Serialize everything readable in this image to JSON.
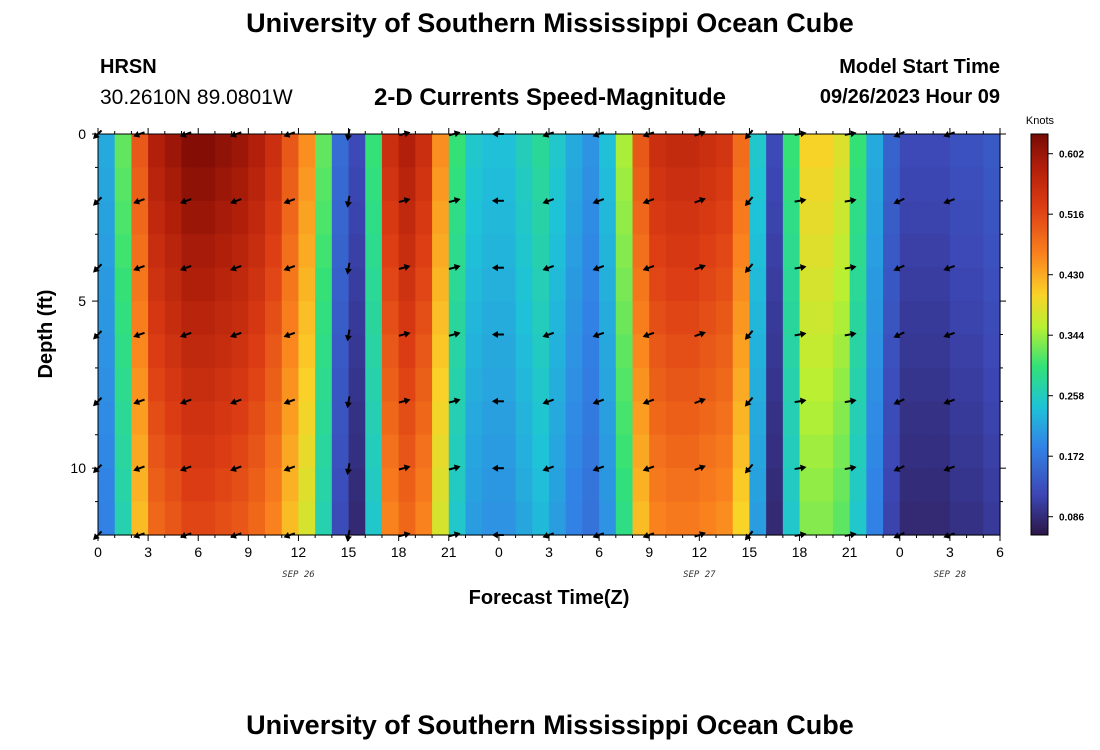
{
  "header": {
    "title": "University of Southern Mississippi Ocean Cube",
    "station": "HRSN",
    "coords": "30.2610N  89.0801W",
    "subtitle": "2-D Currents Speed-Magnitude",
    "model_start_label": "Model Start Time",
    "model_start_value": "09/26/2023 Hour 09"
  },
  "footer": {
    "title": "University of Southern Mississippi Ocean Cube"
  },
  "chart_data": {
    "type": "heatmap",
    "title": "2-D Currents Speed-Magnitude",
    "xlabel": "Forecast Time(Z)",
    "ylabel": "Depth (ft)",
    "x_hours_range": [
      0,
      54
    ],
    "x_tick_step_hours": 3,
    "x_tick_labels": [
      "0",
      "3",
      "6",
      "9",
      "12",
      "15",
      "18",
      "21",
      "0",
      "3",
      "6",
      "9",
      "12",
      "15",
      "18",
      "21",
      "0",
      "3",
      "6"
    ],
    "date_labels": [
      {
        "hour": 12,
        "text": "SEP 26"
      },
      {
        "hour": 36,
        "text": "SEP 27"
      },
      {
        "hour": 51,
        "text": "SEP 28"
      }
    ],
    "y_range_ft": [
      0,
      12
    ],
    "y_ticks": [
      0,
      5,
      10
    ],
    "y_tick_labels": [
      "0",
      "5",
      "10"
    ],
    "colorbar": {
      "units": "Knots",
      "min": 0.06,
      "max": 0.63,
      "tick_values": [
        0.602,
        0.516,
        0.43,
        0.344,
        0.258,
        0.172,
        0.086
      ],
      "tick_labels": [
        "0.602",
        "0.516",
        "0.430",
        "0.344",
        "0.258",
        "0.172",
        "0.086"
      ]
    },
    "depth_levels_ft": [
      0,
      1,
      2,
      3,
      4,
      5,
      6,
      7,
      8,
      9,
      10,
      11,
      12
    ],
    "surface_speed_by_hour": [
      0.22,
      0.32,
      0.5,
      0.58,
      0.6,
      0.62,
      0.62,
      0.61,
      0.6,
      0.58,
      0.55,
      0.5,
      0.45,
      0.32,
      0.16,
      0.12,
      0.3,
      0.55,
      0.58,
      0.55,
      0.45,
      0.3,
      0.25,
      0.24,
      0.24,
      0.26,
      0.28,
      0.25,
      0.22,
      0.2,
      0.24,
      0.35,
      0.5,
      0.55,
      0.56,
      0.56,
      0.55,
      0.54,
      0.48,
      0.25,
      0.12,
      0.3,
      0.4,
      0.4,
      0.38,
      0.3,
      0.22,
      0.15,
      0.12,
      0.12,
      0.12,
      0.13,
      0.13,
      0.14,
      0.15
    ],
    "arrow_hours": [
      0,
      2.5,
      5.3,
      8.3,
      11.5,
      15,
      18.3,
      21.3,
      24,
      27,
      30,
      33,
      36,
      39,
      42,
      45,
      48,
      51
    ],
    "arrow_depths_ft": [
      0,
      2,
      4,
      6,
      8,
      10,
      12
    ],
    "arrow_direction_deg_by_hour": [
      225,
      200,
      200,
      200,
      200,
      260,
      15,
      15,
      180,
      200,
      200,
      200,
      20,
      230,
      10,
      10,
      205,
      200
    ]
  }
}
